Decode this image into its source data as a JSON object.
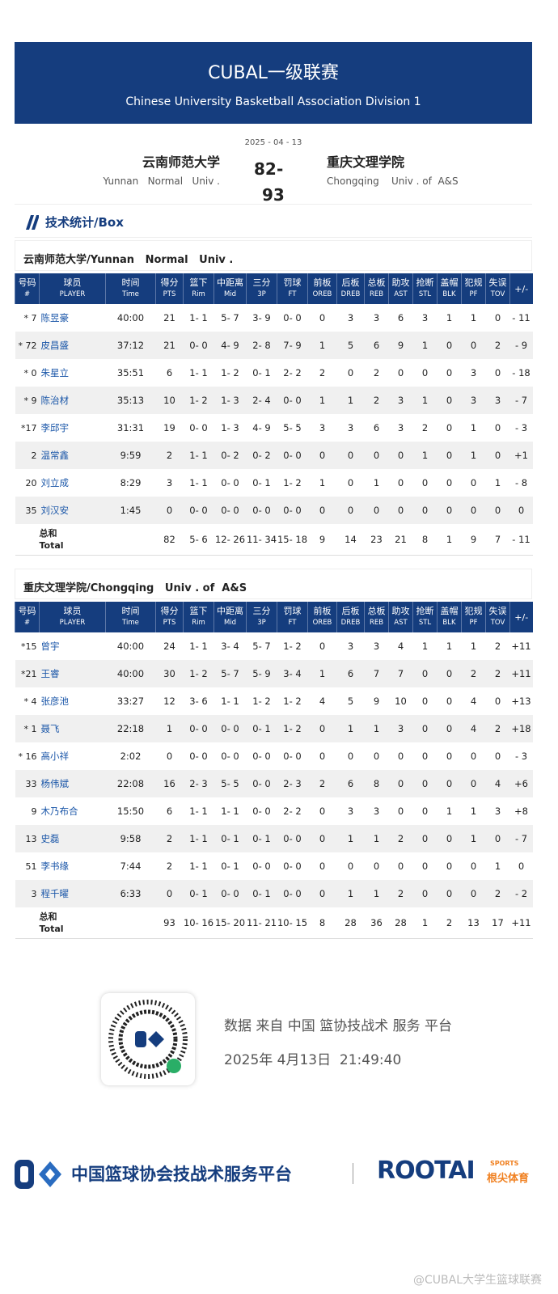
{
  "header": {
    "title": "CUBAL一级联赛",
    "subtitle": "Chinese University Basketball Association Division 1"
  },
  "match": {
    "date": "2025 - 04 - 13",
    "home_cn": "云南师范大学",
    "home_en": "Yunnan   Normal   Univ .",
    "home_score": "82",
    "score_separator": "-",
    "away_score": "93",
    "away_cn": "重庆文理学院",
    "away_en": "Chongqing    Univ . of  A&S"
  },
  "section_title": "技术统计/Box",
  "columns": [
    {
      "cn": "号码",
      "en": "#"
    },
    {
      "cn": "球员",
      "en": "PLAYER"
    },
    {
      "cn": "时间",
      "en": "Time"
    },
    {
      "cn": "得分",
      "en": "PTS"
    },
    {
      "cn": "篮下",
      "en": "Rim"
    },
    {
      "cn": "中距离",
      "en": "Mid"
    },
    {
      "cn": "三分",
      "en": "3P"
    },
    {
      "cn": "罚球",
      "en": "FT"
    },
    {
      "cn": "前板",
      "en": "OREB"
    },
    {
      "cn": "后板",
      "en": "DREB"
    },
    {
      "cn": "总板",
      "en": "REB"
    },
    {
      "cn": "助攻",
      "en": "AST"
    },
    {
      "cn": "抢断",
      "en": "STL"
    },
    {
      "cn": "盖帽",
      "en": "BLK"
    },
    {
      "cn": "犯规",
      "en": "PF"
    },
    {
      "cn": "失误",
      "en": "TOV"
    },
    {
      "cn": "+/-",
      "en": ""
    }
  ],
  "total_label": {
    "cn": "总和",
    "en": "Total"
  },
  "teams": [
    {
      "name": "云南师范大学/Yunnan   Normal   Univ .",
      "rows": [
        [
          "* 7",
          "陈昱豪",
          "40:00",
          "21",
          "1- 1",
          "5- 7",
          "3- 9",
          "0- 0",
          "0",
          "3",
          "3",
          "6",
          "3",
          "1",
          "1",
          "0",
          "- 11"
        ],
        [
          "* 72",
          "皮昌盛",
          "37:12",
          "21",
          "0- 0",
          "4- 9",
          "2- 8",
          "7- 9",
          "1",
          "5",
          "6",
          "9",
          "1",
          "0",
          "0",
          "2",
          "- 9"
        ],
        [
          "* 0",
          "朱星立",
          "35:51",
          "6",
          "1- 1",
          "1- 2",
          "0- 1",
          "2- 2",
          "2",
          "0",
          "2",
          "0",
          "0",
          "0",
          "3",
          "0",
          "- 18"
        ],
        [
          "* 9",
          "陈治材",
          "35:13",
          "10",
          "1- 2",
          "1- 3",
          "2- 4",
          "0- 0",
          "1",
          "1",
          "2",
          "3",
          "1",
          "0",
          "3",
          "3",
          "- 7"
        ],
        [
          "*17",
          "李邱宇",
          "31:31",
          "19",
          "0- 0",
          "1- 3",
          "4- 9",
          "5- 5",
          "3",
          "3",
          "6",
          "3",
          "2",
          "0",
          "1",
          "0",
          "- 3"
        ],
        [
          "2",
          "温常鑫",
          "9:59",
          "2",
          "1- 1",
          "0- 2",
          "0- 2",
          "0- 0",
          "0",
          "0",
          "0",
          "0",
          "1",
          "0",
          "1",
          "0",
          "+1"
        ],
        [
          "20",
          "刘立成",
          "8:29",
          "3",
          "1- 1",
          "0- 0",
          "0- 1",
          "1- 2",
          "1",
          "0",
          "1",
          "0",
          "0",
          "0",
          "0",
          "1",
          "- 8"
        ],
        [
          "35",
          "刘汉安",
          "1:45",
          "0",
          "0- 0",
          "0- 0",
          "0- 0",
          "0- 0",
          "0",
          "0",
          "0",
          "0",
          "0",
          "0",
          "0",
          "0",
          "0"
        ]
      ],
      "total": [
        "82",
        "5- 6",
        "12- 26",
        "11- 34",
        "15- 18",
        "9",
        "14",
        "23",
        "21",
        "8",
        "1",
        "9",
        "7",
        "- 11"
      ]
    },
    {
      "name": "重庆文理学院/Chongqing   Univ . of  A&S",
      "rows": [
        [
          "*15",
          "曾宇",
          "40:00",
          "24",
          "1- 1",
          "3- 4",
          "5- 7",
          "1- 2",
          "0",
          "3",
          "3",
          "4",
          "1",
          "1",
          "1",
          "2",
          "+11"
        ],
        [
          "*21",
          "王睿",
          "40:00",
          "30",
          "1- 2",
          "5- 7",
          "5- 9",
          "3- 4",
          "1",
          "6",
          "7",
          "7",
          "0",
          "0",
          "2",
          "2",
          "+11"
        ],
        [
          "* 4",
          "张彦池",
          "33:27",
          "12",
          "3- 6",
          "1- 1",
          "1- 2",
          "1- 2",
          "4",
          "5",
          "9",
          "10",
          "0",
          "0",
          "4",
          "0",
          "+13"
        ],
        [
          "* 1",
          "聂飞",
          "22:18",
          "1",
          "0- 0",
          "0- 0",
          "0- 1",
          "1- 2",
          "0",
          "1",
          "1",
          "3",
          "0",
          "0",
          "4",
          "2",
          "+18"
        ],
        [
          "* 16",
          "高小祥",
          "2:02",
          "0",
          "0- 0",
          "0- 0",
          "0- 0",
          "0- 0",
          "0",
          "0",
          "0",
          "0",
          "0",
          "0",
          "0",
          "0",
          "- 3"
        ],
        [
          "33",
          "杨伟斌",
          "22:08",
          "16",
          "2- 3",
          "5- 5",
          "0- 0",
          "2- 3",
          "2",
          "6",
          "8",
          "0",
          "0",
          "0",
          "0",
          "4",
          "+6"
        ],
        [
          "9",
          "木乃布合",
          "15:50",
          "6",
          "1- 1",
          "1- 1",
          "0- 0",
          "2- 2",
          "0",
          "3",
          "3",
          "0",
          "0",
          "1",
          "1",
          "3",
          "+8"
        ],
        [
          "13",
          "史磊",
          "9:58",
          "2",
          "1- 1",
          "0- 1",
          "0- 1",
          "0- 0",
          "0",
          "1",
          "1",
          "2",
          "0",
          "0",
          "1",
          "0",
          "- 7"
        ],
        [
          "51",
          "李书缘",
          "7:44",
          "2",
          "1- 1",
          "0- 1",
          "0- 0",
          "0- 0",
          "0",
          "0",
          "0",
          "0",
          "0",
          "0",
          "0",
          "1",
          "0"
        ],
        [
          "3",
          "程千曜",
          "6:33",
          "0",
          "0- 1",
          "0- 0",
          "0- 1",
          "0- 0",
          "0",
          "1",
          "1",
          "2",
          "0",
          "0",
          "0",
          "2",
          "- 2"
        ]
      ],
      "total": [
        "93",
        "10- 16",
        "15- 20",
        "11- 21",
        "10- 15",
        "8",
        "28",
        "36",
        "28",
        "1",
        "2",
        "13",
        "17",
        "+11"
      ]
    }
  ],
  "footer": {
    "source": "数据 来自 中国 篮协技战术 服务 平台",
    "timestamp": "2025年 4月13日  21:49:40",
    "platform": "中国篮球协会技战术服务平台",
    "brand": "ROOTAI",
    "brand_tag": "SPORTS",
    "brand_cn": "根尖体育",
    "watermark": "@CUBAL大学生篮球联赛"
  }
}
